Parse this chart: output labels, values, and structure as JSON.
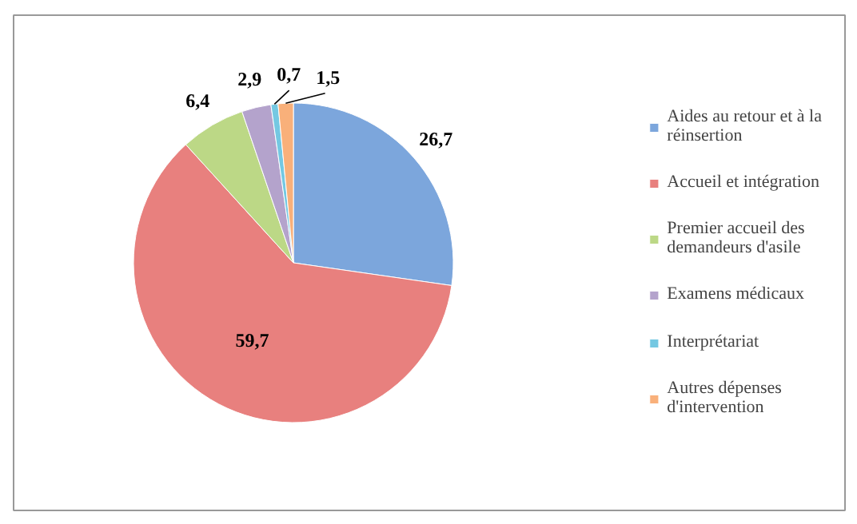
{
  "chart_data": {
    "type": "pie",
    "categories": [
      "Aides au retour et à la réinsertion",
      "Accueil et intégration",
      "Premier accueil des demandeurs d'asile",
      "Examens médicaux",
      "Interprétariat",
      "Autres dépenses d'intervention"
    ],
    "values": [
      26.7,
      59.7,
      6.4,
      2.9,
      0.7,
      1.5
    ],
    "colors": [
      "#7ca6dc",
      "#e8807e",
      "#bcd886",
      "#b4a3cc",
      "#74c8e2",
      "#f9b07a"
    ],
    "value_labels": [
      "26,7",
      "59,7",
      "6,4",
      "2,9",
      "0,7",
      "1,5"
    ],
    "legend": "right"
  }
}
